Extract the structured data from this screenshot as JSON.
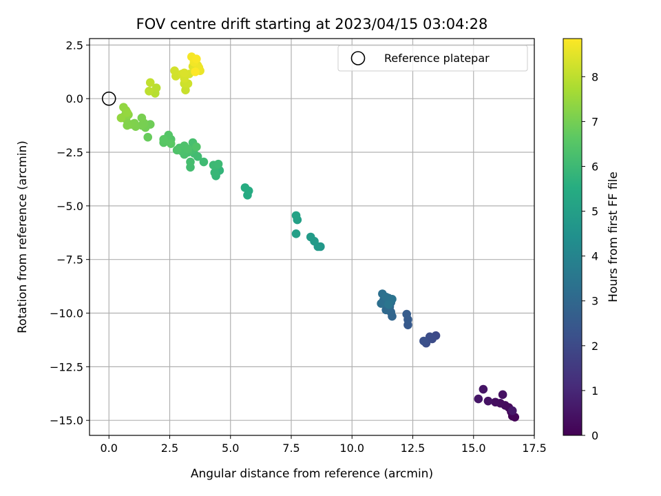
{
  "chart_data": {
    "type": "scatter",
    "title": "FOV centre drift starting at 2023/04/15 03:04:28",
    "xlabel": "Angular distance from reference (arcmin)",
    "ylabel": "Rotation from reference (arcmin)",
    "xlim": [
      -0.8,
      17.5
    ],
    "ylim": [
      -15.7,
      2.8
    ],
    "xticks": [
      0.0,
      2.5,
      5.0,
      7.5,
      10.0,
      12.5,
      15.0,
      17.5
    ],
    "xtick_labels": [
      "0.0",
      "2.5",
      "5.0",
      "7.5",
      "10.0",
      "12.5",
      "15.0",
      "17.5"
    ],
    "yticks": [
      2.5,
      0.0,
      -2.5,
      -5.0,
      -7.5,
      -10.0,
      -12.5,
      -15.0
    ],
    "ytick_labels": [
      "2.5",
      "0.0",
      "−2.5",
      "−5.0",
      "−7.5",
      "−10.0",
      "−12.5",
      "−15.0"
    ],
    "grid": true,
    "legend": {
      "placement": "upper-right",
      "entries": [
        "Reference platepar"
      ]
    },
    "reference_point": {
      "x": 0.0,
      "y": 0.0
    },
    "colorbar": {
      "label": "Hours from first FF file",
      "colormap": "viridis",
      "range": [
        0,
        8.85
      ],
      "ticks": [
        0,
        1,
        2,
        3,
        4,
        5,
        6,
        7,
        8
      ],
      "tick_labels": [
        "0",
        "1",
        "2",
        "3",
        "4",
        "5",
        "6",
        "7",
        "8"
      ]
    },
    "points": [
      {
        "x": 16.6,
        "y": -14.8,
        "c": 0.05
      },
      {
        "x": 16.7,
        "y": -14.85,
        "c": 0.1
      },
      {
        "x": 16.55,
        "y": -14.6,
        "c": 0.15
      },
      {
        "x": 16.45,
        "y": -14.4,
        "c": 0.2
      },
      {
        "x": 16.3,
        "y": -14.3,
        "c": 0.25
      },
      {
        "x": 16.1,
        "y": -14.2,
        "c": 0.3
      },
      {
        "x": 15.9,
        "y": -14.15,
        "c": 0.35
      },
      {
        "x": 16.2,
        "y": -13.8,
        "c": 0.4
      },
      {
        "x": 15.6,
        "y": -14.1,
        "c": 0.45
      },
      {
        "x": 15.4,
        "y": -13.55,
        "c": 0.5
      },
      {
        "x": 15.2,
        "y": -14.0,
        "c": 0.55
      },
      {
        "x": 16.6,
        "y": -14.55,
        "c": 0.6
      },
      {
        "x": 13.45,
        "y": -11.05,
        "c": 2.0
      },
      {
        "x": 13.3,
        "y": -11.2,
        "c": 2.05
      },
      {
        "x": 13.2,
        "y": -11.1,
        "c": 2.1
      },
      {
        "x": 13.05,
        "y": -11.4,
        "c": 2.15
      },
      {
        "x": 12.95,
        "y": -11.3,
        "c": 2.2
      },
      {
        "x": 12.3,
        "y": -10.55,
        "c": 2.5
      },
      {
        "x": 12.3,
        "y": -10.3,
        "c": 2.55
      },
      {
        "x": 12.25,
        "y": -10.05,
        "c": 2.6
      },
      {
        "x": 11.65,
        "y": -10.15,
        "c": 2.9
      },
      {
        "x": 11.6,
        "y": -9.95,
        "c": 2.95
      },
      {
        "x": 11.55,
        "y": -9.7,
        "c": 3.0
      },
      {
        "x": 11.4,
        "y": -9.85,
        "c": 3.05
      },
      {
        "x": 11.6,
        "y": -9.5,
        "c": 3.1
      },
      {
        "x": 11.5,
        "y": -9.3,
        "c": 3.15
      },
      {
        "x": 11.3,
        "y": -9.4,
        "c": 3.2
      },
      {
        "x": 11.2,
        "y": -9.55,
        "c": 3.25
      },
      {
        "x": 11.25,
        "y": -9.1,
        "c": 3.3
      },
      {
        "x": 11.4,
        "y": -9.25,
        "c": 3.35
      },
      {
        "x": 11.65,
        "y": -9.35,
        "c": 3.4
      },
      {
        "x": 11.5,
        "y": -9.6,
        "c": 3.45
      },
      {
        "x": 8.7,
        "y": -6.9,
        "c": 4.7
      },
      {
        "x": 8.6,
        "y": -6.9,
        "c": 4.75
      },
      {
        "x": 8.45,
        "y": -6.65,
        "c": 4.8
      },
      {
        "x": 8.3,
        "y": -6.45,
        "c": 4.85
      },
      {
        "x": 7.7,
        "y": -6.3,
        "c": 5.0
      },
      {
        "x": 7.75,
        "y": -5.65,
        "c": 5.05
      },
      {
        "x": 7.7,
        "y": -5.45,
        "c": 5.1
      },
      {
        "x": 5.7,
        "y": -4.5,
        "c": 5.4
      },
      {
        "x": 5.75,
        "y": -4.3,
        "c": 5.45
      },
      {
        "x": 5.6,
        "y": -4.15,
        "c": 5.5
      },
      {
        "x": 4.55,
        "y": -3.35,
        "c": 5.8
      },
      {
        "x": 4.4,
        "y": -3.6,
        "c": 5.85
      },
      {
        "x": 4.35,
        "y": -3.45,
        "c": 5.9
      },
      {
        "x": 4.45,
        "y": -3.1,
        "c": 5.95
      },
      {
        "x": 4.3,
        "y": -3.1,
        "c": 6.0
      },
      {
        "x": 4.5,
        "y": -3.05,
        "c": 6.02
      },
      {
        "x": 3.9,
        "y": -2.95,
        "c": 6.05
      },
      {
        "x": 3.65,
        "y": -2.7,
        "c": 6.1
      },
      {
        "x": 3.5,
        "y": -2.55,
        "c": 6.12
      },
      {
        "x": 3.35,
        "y": -3.2,
        "c": 6.15
      },
      {
        "x": 3.35,
        "y": -2.95,
        "c": 6.18
      },
      {
        "x": 3.4,
        "y": -2.4,
        "c": 6.2
      },
      {
        "x": 3.45,
        "y": -2.05,
        "c": 6.22
      },
      {
        "x": 3.25,
        "y": -2.5,
        "c": 6.25
      },
      {
        "x": 3.1,
        "y": -2.6,
        "c": 6.28
      },
      {
        "x": 3.0,
        "y": -2.45,
        "c": 6.3
      },
      {
        "x": 2.9,
        "y": -2.3,
        "c": 6.32
      },
      {
        "x": 3.1,
        "y": -2.2,
        "c": 6.34
      },
      {
        "x": 3.25,
        "y": -2.35,
        "c": 6.36
      },
      {
        "x": 2.8,
        "y": -2.4,
        "c": 6.38
      },
      {
        "x": 3.6,
        "y": -2.25,
        "c": 6.4
      },
      {
        "x": 2.55,
        "y": -1.9,
        "c": 6.45
      },
      {
        "x": 2.45,
        "y": -1.7,
        "c": 6.5
      },
      {
        "x": 2.35,
        "y": -1.95,
        "c": 6.52
      },
      {
        "x": 2.25,
        "y": -2.05,
        "c": 6.55
      },
      {
        "x": 2.25,
        "y": -1.9,
        "c": 6.58
      },
      {
        "x": 2.55,
        "y": -2.1,
        "c": 6.6
      },
      {
        "x": 1.6,
        "y": -1.8,
        "c": 6.8
      },
      {
        "x": 1.7,
        "y": -1.2,
        "c": 6.9
      },
      {
        "x": 1.5,
        "y": -1.35,
        "c": 6.95
      },
      {
        "x": 1.45,
        "y": -1.15,
        "c": 7.0
      },
      {
        "x": 1.35,
        "y": -1.25,
        "c": 7.02
      },
      {
        "x": 1.35,
        "y": -0.9,
        "c": 7.05
      },
      {
        "x": 1.1,
        "y": -1.3,
        "c": 7.1
      },
      {
        "x": 1.05,
        "y": -1.15,
        "c": 7.12
      },
      {
        "x": 0.9,
        "y": -1.2,
        "c": 7.15
      },
      {
        "x": 0.75,
        "y": -1.25,
        "c": 7.18
      },
      {
        "x": 0.7,
        "y": -0.95,
        "c": 7.2
      },
      {
        "x": 0.65,
        "y": -0.8,
        "c": 7.25
      },
      {
        "x": 0.8,
        "y": -0.75,
        "c": 7.3
      },
      {
        "x": 0.7,
        "y": -0.55,
        "c": 7.35
      },
      {
        "x": 0.6,
        "y": -0.4,
        "c": 7.4
      },
      {
        "x": 0.5,
        "y": -0.9,
        "c": 7.42
      },
      {
        "x": 0.75,
        "y": -0.65,
        "c": 7.45
      },
      {
        "x": 1.9,
        "y": 0.25,
        "c": 7.9
      },
      {
        "x": 1.95,
        "y": 0.5,
        "c": 7.95
      },
      {
        "x": 1.65,
        "y": 0.35,
        "c": 8.0
      },
      {
        "x": 1.7,
        "y": 0.75,
        "c": 8.05
      },
      {
        "x": 3.15,
        "y": 0.4,
        "c": 8.15
      },
      {
        "x": 3.1,
        "y": 0.7,
        "c": 8.2
      },
      {
        "x": 3.25,
        "y": 0.7,
        "c": 8.22
      },
      {
        "x": 2.75,
        "y": 1.05,
        "c": 8.25
      },
      {
        "x": 2.7,
        "y": 1.3,
        "c": 8.28
      },
      {
        "x": 3.0,
        "y": 1.15,
        "c": 8.3
      },
      {
        "x": 3.1,
        "y": 0.95,
        "c": 8.32
      },
      {
        "x": 3.3,
        "y": 1.15,
        "c": 8.35
      },
      {
        "x": 3.1,
        "y": 1.2,
        "c": 8.38
      },
      {
        "x": 3.45,
        "y": 1.5,
        "c": 8.45
      },
      {
        "x": 3.55,
        "y": 1.35,
        "c": 8.5
      },
      {
        "x": 3.65,
        "y": 1.55,
        "c": 8.55
      },
      {
        "x": 3.75,
        "y": 1.3,
        "c": 8.6
      },
      {
        "x": 3.7,
        "y": 1.45,
        "c": 8.65
      },
      {
        "x": 3.5,
        "y": 1.7,
        "c": 8.7
      },
      {
        "x": 3.4,
        "y": 1.95,
        "c": 8.75
      },
      {
        "x": 3.6,
        "y": 1.85,
        "c": 8.8
      },
      {
        "x": 3.55,
        "y": 1.25,
        "c": 8.85
      }
    ]
  }
}
